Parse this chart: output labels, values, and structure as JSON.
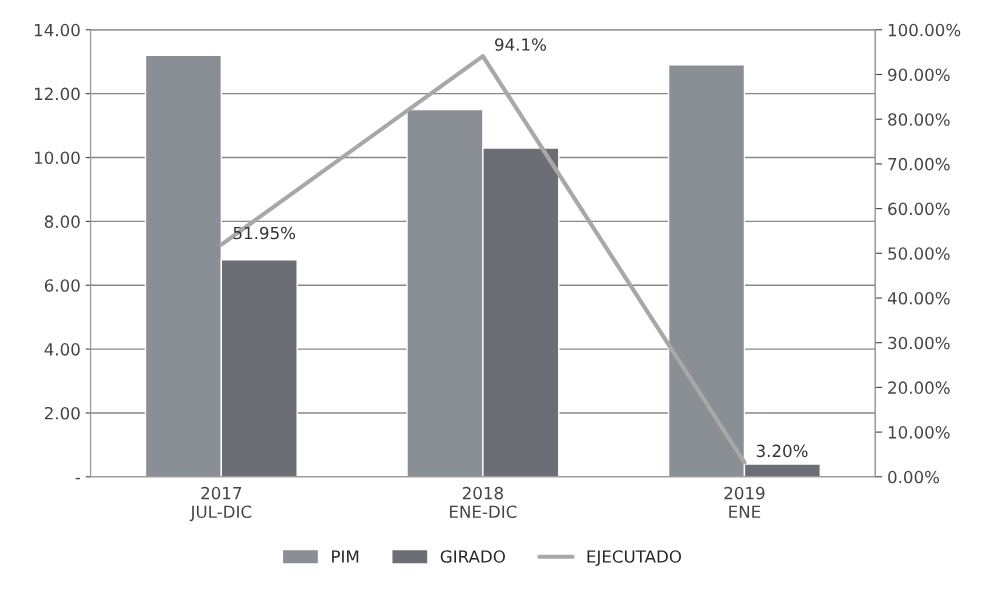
{
  "chart_data": {
    "type": "bar",
    "categories": [
      "2017\nJUL-DIC",
      "2018\nENE-DIC",
      "2019\nENE"
    ],
    "series": [
      {
        "name": "PIM",
        "color": "#8a8f96",
        "values": [
          13.2,
          11.5,
          12.9
        ]
      },
      {
        "name": "GIRADO",
        "color": "#6b6e75",
        "values": [
          6.8,
          10.3,
          0.4
        ]
      },
      {
        "name": "EJECUTADO",
        "type": "line",
        "axis": "y2",
        "color": "#a8a8a8",
        "values": [
          51.95,
          94.1,
          3.2
        ],
        "value_labels": [
          "51.95%",
          "94.1%",
          "3.20%"
        ]
      }
    ],
    "ylim": [
      0,
      14
    ],
    "yticks": [
      {
        "value": 0,
        "label": "-"
      },
      {
        "value": 2,
        "label": "2.00"
      },
      {
        "value": 4,
        "label": "4.00"
      },
      {
        "value": 6,
        "label": "6.00"
      },
      {
        "value": 8,
        "label": "8.00"
      },
      {
        "value": 10,
        "label": "10.00"
      },
      {
        "value": 12,
        "label": "12.00"
      },
      {
        "value": 14,
        "label": "14.00"
      }
    ],
    "y2lim": [
      0,
      100
    ],
    "y2ticks": [
      {
        "value": 0,
        "label": "0.00%"
      },
      {
        "value": 10,
        "label": "10.00%"
      },
      {
        "value": 20,
        "label": "20.00%"
      },
      {
        "value": 30,
        "label": "30.00%"
      },
      {
        "value": 40,
        "label": "40.00%"
      },
      {
        "value": 50,
        "label": "50.00%"
      },
      {
        "value": 60,
        "label": "60.00%"
      },
      {
        "value": 70,
        "label": "70.00%"
      },
      {
        "value": 80,
        "label": "80.00%"
      },
      {
        "value": 90,
        "label": "90.00%"
      },
      {
        "value": 100,
        "label": "100.00%"
      }
    ],
    "grid": "y",
    "legend": "bottom"
  }
}
